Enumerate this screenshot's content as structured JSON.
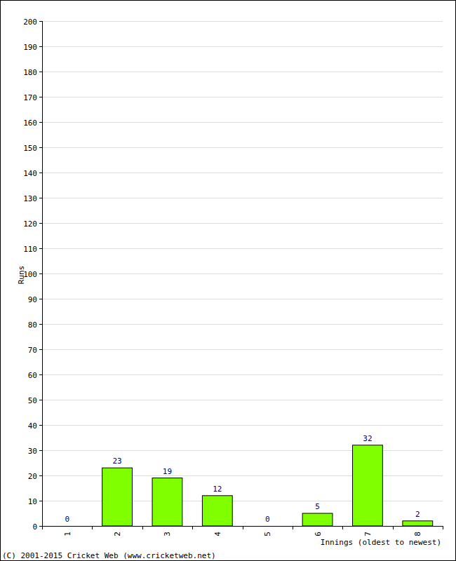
{
  "chart_data": {
    "type": "bar",
    "categories": [
      "1",
      "2",
      "3",
      "4",
      "5",
      "6",
      "7",
      "8"
    ],
    "values": [
      0,
      23,
      19,
      12,
      0,
      5,
      32,
      2
    ],
    "color": "#80ff00",
    "x_label": "Innings (oldest to newest)",
    "y_label": "Runs",
    "annotations": [
      "(C) 2001-2015 Cricket Web (www.cricketweb.net)"
    ],
    "ylim": [
      0,
      200
    ],
    "yticks": [
      0,
      10,
      20,
      30,
      40,
      50,
      60,
      70,
      80,
      90,
      100,
      110,
      120,
      130,
      140,
      150,
      160,
      170,
      180,
      190,
      200
    ],
    "grid": true,
    "data_labels": true
  }
}
